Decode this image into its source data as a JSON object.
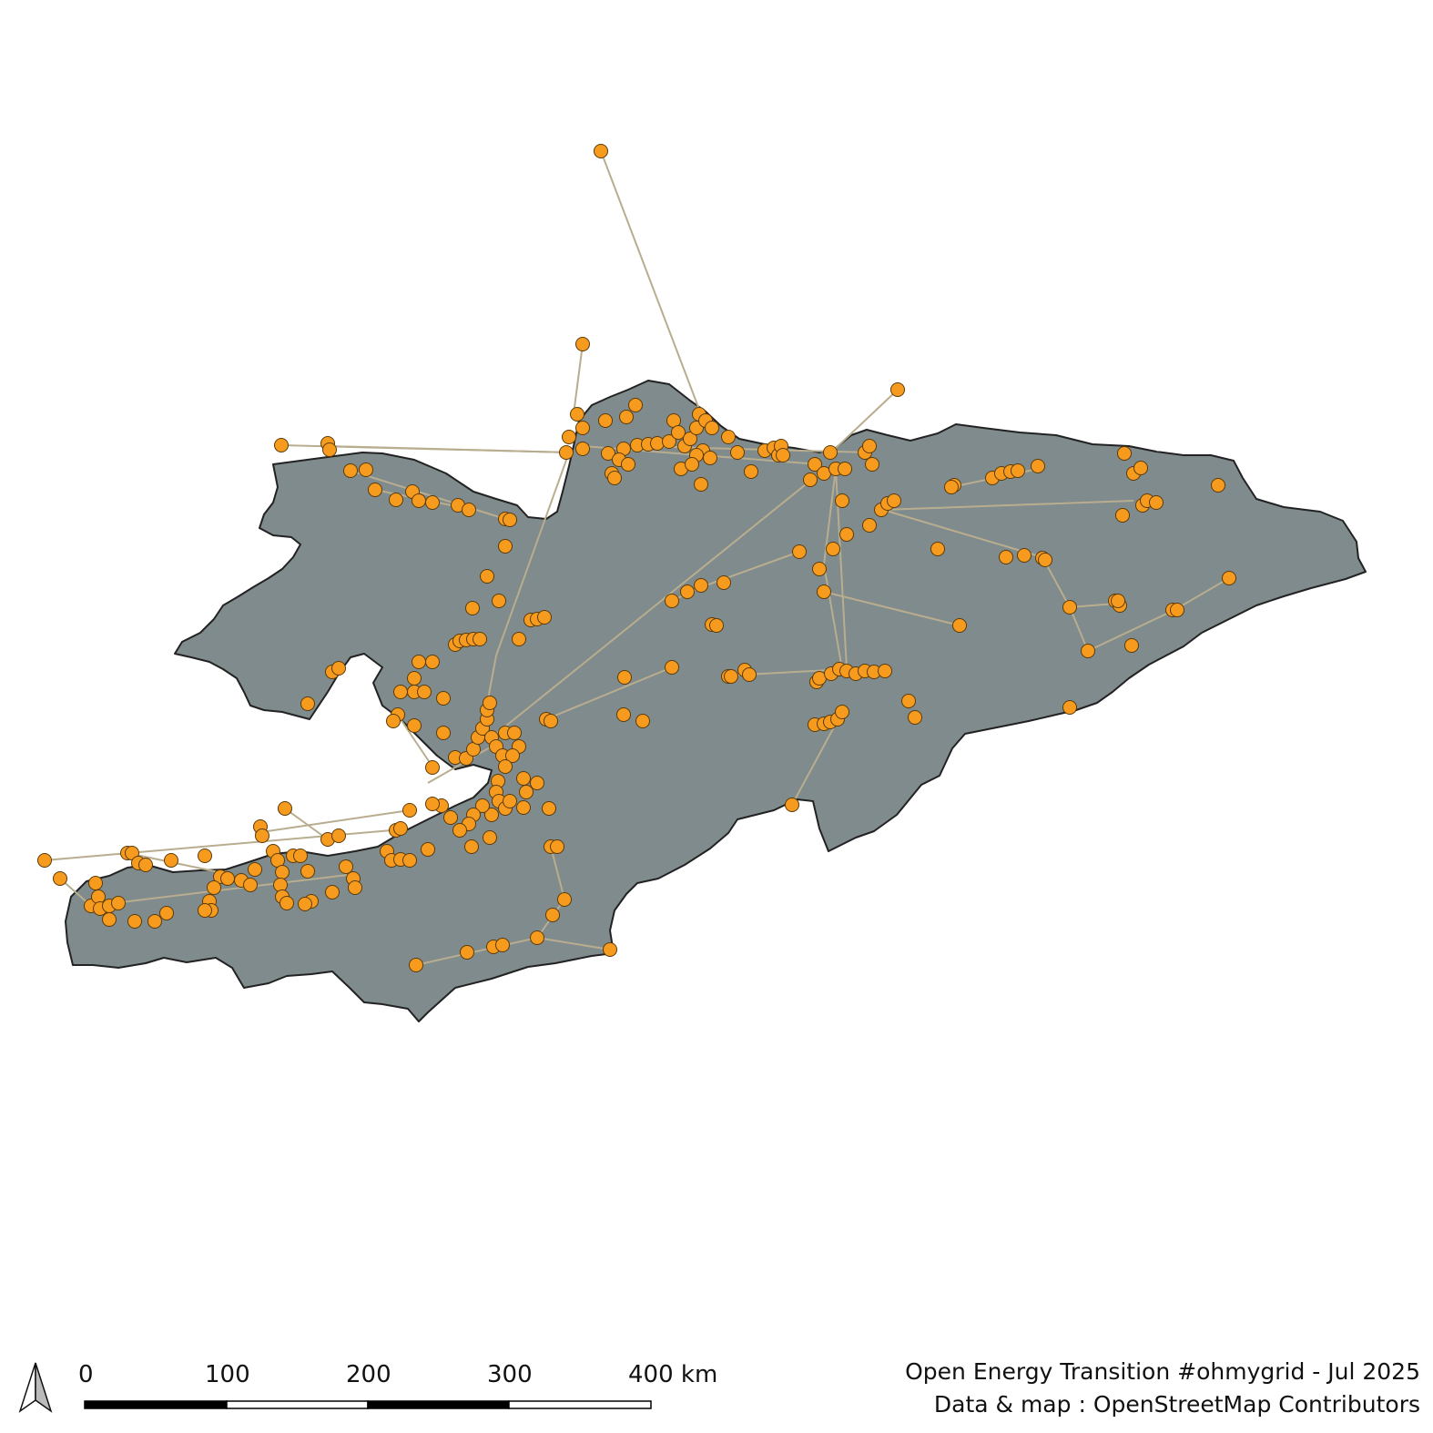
{
  "map": {
    "region_fill": "#7f8b8c",
    "region_stroke": "#222222",
    "line_color": "#b9ad8f",
    "node_fill": "#f79b1e",
    "node_stroke": "#5a3a0a"
  },
  "north_arrow": {
    "icon": "north-arrow-icon"
  },
  "scale_bar": {
    "labels": [
      "0",
      "100",
      "200",
      "300",
      "400 km"
    ]
  },
  "credits": {
    "line1": "Open Energy Transition #ohmygrid - Jul 2025",
    "line2": "Data & map : OpenStreetMap Contributors"
  }
}
